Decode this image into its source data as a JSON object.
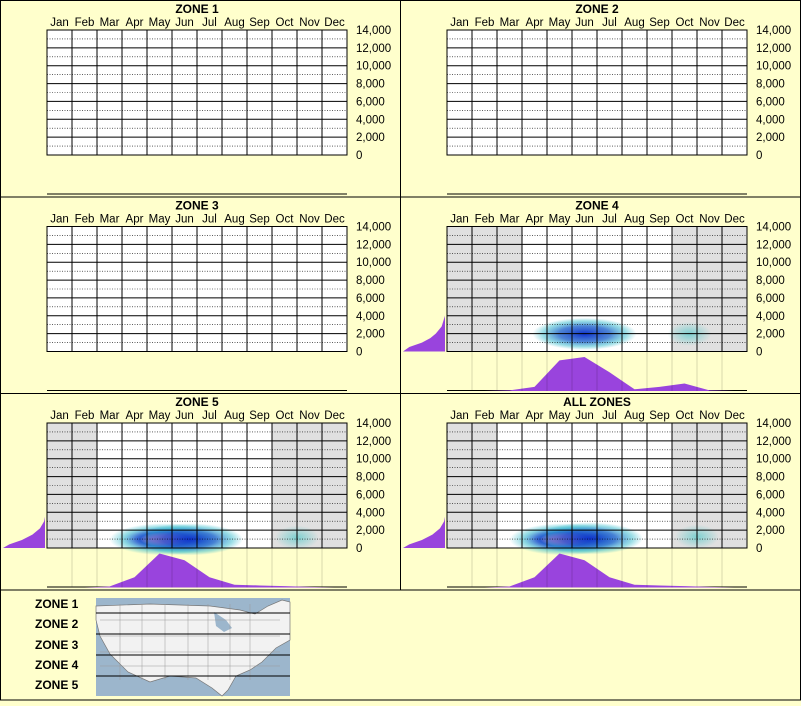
{
  "months": [
    "Jan",
    "Feb",
    "Mar",
    "Apr",
    "May",
    "Jun",
    "Jul",
    "Aug",
    "Sep",
    "Oct",
    "Nov",
    "Dec"
  ],
  "y_ticks": [
    "14,000",
    "12,000",
    "10,000",
    "8,000",
    "6,000",
    "4,000",
    "2,000",
    "0"
  ],
  "colors": {
    "background": "#ffffcc",
    "grid_line": "#000000",
    "season_shade": "#e0e0e0",
    "density_fill": "#9944dd",
    "heat_low": "#33bbcc",
    "heat_mid": "#1133cc",
    "heat_high": "#ff33aa"
  },
  "chart_data": [
    {
      "type": "heatmap",
      "title": "ZONE 1",
      "x_categories": [
        "Jan",
        "Feb",
        "Mar",
        "Apr",
        "May",
        "Jun",
        "Jul",
        "Aug",
        "Sep",
        "Oct",
        "Nov",
        "Dec"
      ],
      "ylim": [
        0,
        14000
      ],
      "y_ticks": [
        0,
        2000,
        4000,
        6000,
        8000,
        10000,
        12000,
        14000
      ],
      "grid": true,
      "shaded_months": [],
      "monthly_activity": [
        0,
        0,
        0,
        0,
        0,
        0,
        0,
        0,
        0,
        0,
        0,
        0
      ],
      "elevation_density": [],
      "hotspots": []
    },
    {
      "type": "heatmap",
      "title": "ZONE 2",
      "x_categories": [
        "Jan",
        "Feb",
        "Mar",
        "Apr",
        "May",
        "Jun",
        "Jul",
        "Aug",
        "Sep",
        "Oct",
        "Nov",
        "Dec"
      ],
      "ylim": [
        0,
        14000
      ],
      "y_ticks": [
        0,
        2000,
        4000,
        6000,
        8000,
        10000,
        12000,
        14000
      ],
      "grid": true,
      "shaded_months": [],
      "monthly_activity": [
        0,
        0,
        0,
        0,
        0,
        0,
        0,
        0,
        0,
        0,
        0,
        0
      ],
      "elevation_density": [],
      "hotspots": []
    },
    {
      "type": "heatmap",
      "title": "ZONE 3",
      "x_categories": [
        "Jan",
        "Feb",
        "Mar",
        "Apr",
        "May",
        "Jun",
        "Jul",
        "Aug",
        "Sep",
        "Oct",
        "Nov",
        "Dec"
      ],
      "ylim": [
        0,
        14000
      ],
      "y_ticks": [
        0,
        2000,
        4000,
        6000,
        8000,
        10000,
        12000,
        14000
      ],
      "grid": true,
      "shaded_months": [],
      "monthly_activity": [
        0,
        0,
        0,
        0,
        0,
        0,
        0,
        0,
        0,
        0,
        0,
        0
      ],
      "elevation_density": [],
      "hotspots": []
    },
    {
      "type": "heatmap",
      "title": "ZONE 4",
      "x_categories": [
        "Jan",
        "Feb",
        "Mar",
        "Apr",
        "May",
        "Jun",
        "Jul",
        "Aug",
        "Sep",
        "Oct",
        "Nov",
        "Dec"
      ],
      "ylim": [
        0,
        14000
      ],
      "y_ticks": [
        0,
        2000,
        4000,
        6000,
        8000,
        10000,
        12000,
        14000
      ],
      "grid": true,
      "shaded_months": [
        0,
        1,
        2,
        9,
        10,
        11
      ],
      "monthly_activity": [
        0,
        0,
        0.02,
        0.12,
        0.9,
        1.0,
        0.55,
        0.05,
        0.12,
        0.22,
        0.02,
        0
      ],
      "elevation_density": [
        [
          0,
          1.0
        ],
        [
          500,
          0.85
        ],
        [
          1000,
          0.55
        ],
        [
          1500,
          0.35
        ],
        [
          2000,
          0.22
        ],
        [
          2800,
          0.08
        ],
        [
          4000,
          0
        ]
      ],
      "hotspots": [
        {
          "month": 5.0,
          "elevation": 1300,
          "intensity": 0.7
        },
        {
          "month": 9.2,
          "elevation": 1300,
          "intensity": 0.25
        }
      ]
    },
    {
      "type": "heatmap",
      "title": "ZONE 5",
      "x_categories": [
        "Jan",
        "Feb",
        "Mar",
        "Apr",
        "May",
        "Jun",
        "Jul",
        "Aug",
        "Sep",
        "Oct",
        "Nov",
        "Dec"
      ],
      "ylim": [
        0,
        14000
      ],
      "y_ticks": [
        0,
        2000,
        4000,
        6000,
        8000,
        10000,
        12000,
        14000
      ],
      "grid": true,
      "shaded_months": [
        0,
        1,
        9,
        10,
        11
      ],
      "monthly_activity": [
        0,
        0,
        0.03,
        0.3,
        1.0,
        0.8,
        0.3,
        0.08,
        0.06,
        0.04,
        0.02,
        0
      ],
      "elevation_density": [
        [
          0,
          1.0
        ],
        [
          400,
          0.85
        ],
        [
          900,
          0.55
        ],
        [
          1500,
          0.3
        ],
        [
          2200,
          0.12
        ],
        [
          3000,
          0.02
        ],
        [
          3500,
          0
        ]
      ],
      "hotspots": [
        {
          "month": 4.2,
          "elevation": 300,
          "intensity": 1.0
        },
        {
          "month": 5.2,
          "elevation": 300,
          "intensity": 0.85
        },
        {
          "month": 9.5,
          "elevation": 500,
          "intensity": 0.2
        }
      ]
    },
    {
      "type": "heatmap",
      "title": "ALL ZONES",
      "x_categories": [
        "Jan",
        "Feb",
        "Mar",
        "Apr",
        "May",
        "Jun",
        "Jul",
        "Aug",
        "Sep",
        "Oct",
        "Nov",
        "Dec"
      ],
      "ylim": [
        0,
        14000
      ],
      "y_ticks": [
        0,
        2000,
        4000,
        6000,
        8000,
        10000,
        12000,
        14000
      ],
      "grid": true,
      "shaded_months": [
        0,
        1,
        9,
        10,
        11
      ],
      "monthly_activity": [
        0,
        0,
        0.03,
        0.3,
        1.0,
        0.8,
        0.3,
        0.08,
        0.06,
        0.04,
        0.02,
        0
      ],
      "elevation_density": [
        [
          0,
          1.0
        ],
        [
          400,
          0.85
        ],
        [
          900,
          0.55
        ],
        [
          1500,
          0.3
        ],
        [
          2200,
          0.12
        ],
        [
          3000,
          0.02
        ],
        [
          3500,
          0
        ]
      ],
      "hotspots": [
        {
          "month": 4.2,
          "elevation": 300,
          "intensity": 1.0
        },
        {
          "month": 5.2,
          "elevation": 400,
          "intensity": 0.85
        },
        {
          "month": 9.5,
          "elevation": 600,
          "intensity": 0.2
        }
      ]
    }
  ],
  "legend": {
    "zones": [
      "ZONE 1",
      "ZONE 2",
      "ZONE 3",
      "ZONE 4",
      "ZONE 5"
    ],
    "map_icon": "us-map-icon"
  }
}
